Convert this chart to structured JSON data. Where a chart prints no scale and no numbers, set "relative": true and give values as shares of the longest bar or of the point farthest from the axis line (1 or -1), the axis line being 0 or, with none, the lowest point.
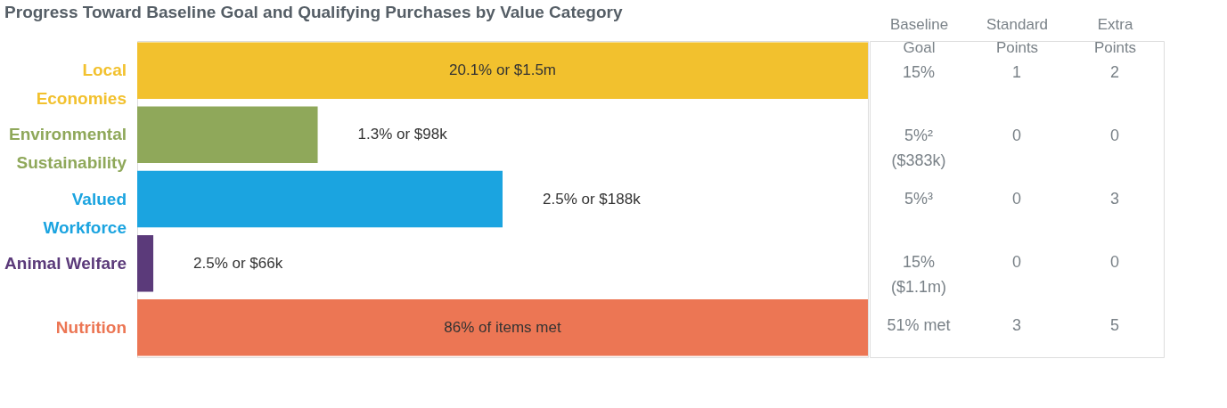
{
  "chart_data": [
    {
      "type": "bar",
      "orientation": "horizontal",
      "relative": true,
      "title": "Progress Toward Baseline Goal and Qualifying Purchases by Value Category",
      "categories": [
        "Local Economies",
        "Environmental Sustainability",
        "Valued Workforce",
        "Animal Welfare",
        "Nutrition"
      ],
      "values": [
        1,
        0.247,
        0.5,
        0.022,
        1
      ],
      "colors": [
        "#f2c12e",
        "#8fa85a",
        "#1ba4e0",
        "#5b3a7a",
        "#ec7654"
      ],
      "annotations": [
        "20.1% or $1.5m",
        "1.3% or $98k",
        "2.5% or $188k",
        "2.5% or $66k",
        "86% of items met"
      ]
    },
    {
      "type": "other",
      "categories": [
        "Baseline Goal",
        "Standard Points",
        "Extra Points"
      ],
      "annotations": [
        "15%",
        "1",
        "2",
        "5%²\n($383k)",
        "0",
        "0",
        "5%³",
        "0",
        "3",
        "15%\n($1.1m)",
        "0",
        "0",
        "51% met",
        "3",
        "5"
      ]
    }
  ]
}
